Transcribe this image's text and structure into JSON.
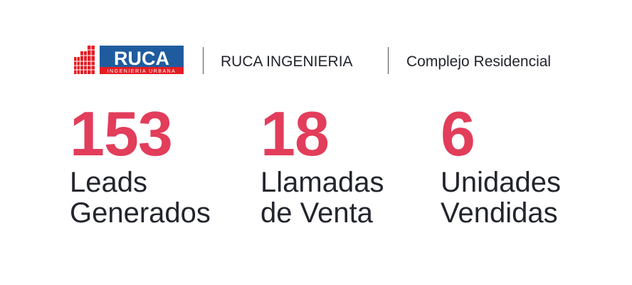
{
  "header": {
    "logo": {
      "name": "RUCA",
      "tagline": "INGENIERIA URBANA",
      "colors": {
        "blue": "#1f5c9e",
        "red": "#e31e24"
      }
    },
    "company": "RUCA INGENIERIA",
    "project": "Complejo Residencial"
  },
  "stats": [
    {
      "value": "153",
      "label_line1": "Leads",
      "label_line2": "Generados"
    },
    {
      "value": "18",
      "label_line1": "Llamadas",
      "label_line2": "de Venta"
    },
    {
      "value": "6",
      "label_line1": "Unidades",
      "label_line2": "Vendidas"
    }
  ],
  "colors": {
    "accent": "#e23d5b",
    "text": "#23252d"
  }
}
